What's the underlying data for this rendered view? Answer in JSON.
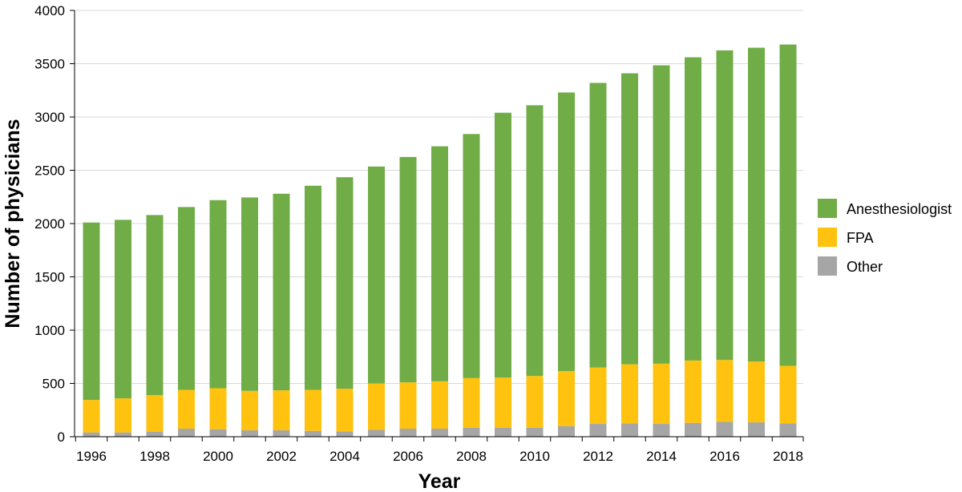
{
  "chart_data": {
    "type": "bar",
    "stacked": true,
    "title": "",
    "xlabel": "Year",
    "ylabel": "Number of physicians",
    "ylim": [
      0,
      4000
    ],
    "yticks": [
      0,
      500,
      1000,
      1500,
      2000,
      2500,
      3000,
      3500,
      4000
    ],
    "xtick_labels": [
      "1996",
      "1998",
      "2000",
      "2002",
      "2004",
      "2006",
      "2008",
      "2010",
      "2012",
      "2014",
      "2016",
      "2018"
    ],
    "categories": [
      "1996",
      "1997",
      "1998",
      "1999",
      "2000",
      "2001",
      "2002",
      "2003",
      "2004",
      "2005",
      "2006",
      "2007",
      "2008",
      "2009",
      "2010",
      "2011",
      "2012",
      "2013",
      "2014",
      "2015",
      "2016",
      "2017",
      "2018"
    ],
    "series": [
      {
        "name": "Other",
        "color": "#a6a6a6",
        "values": [
          40,
          40,
          45,
          75,
          70,
          60,
          60,
          55,
          50,
          65,
          75,
          75,
          85,
          85,
          85,
          100,
          120,
          125,
          120,
          130,
          140,
          135,
          125
        ]
      },
      {
        "name": "FPA",
        "color": "#ffc20e",
        "values": [
          305,
          320,
          345,
          365,
          385,
          370,
          375,
          385,
          400,
          435,
          435,
          445,
          465,
          470,
          485,
          515,
          530,
          555,
          565,
          585,
          580,
          570,
          540
        ]
      },
      {
        "name": "Anesthesiologist",
        "color": "#70ad47",
        "values": [
          1665,
          1675,
          1690,
          1715,
          1765,
          1815,
          1845,
          1915,
          1985,
          2035,
          2115,
          2205,
          2290,
          2485,
          2540,
          2615,
          2670,
          2730,
          2800,
          2845,
          2905,
          2945,
          3015
        ]
      }
    ],
    "legend": {
      "position": "right",
      "entries": [
        "Anesthesiologist",
        "FPA",
        "Other"
      ]
    },
    "grid": "horizontal"
  }
}
